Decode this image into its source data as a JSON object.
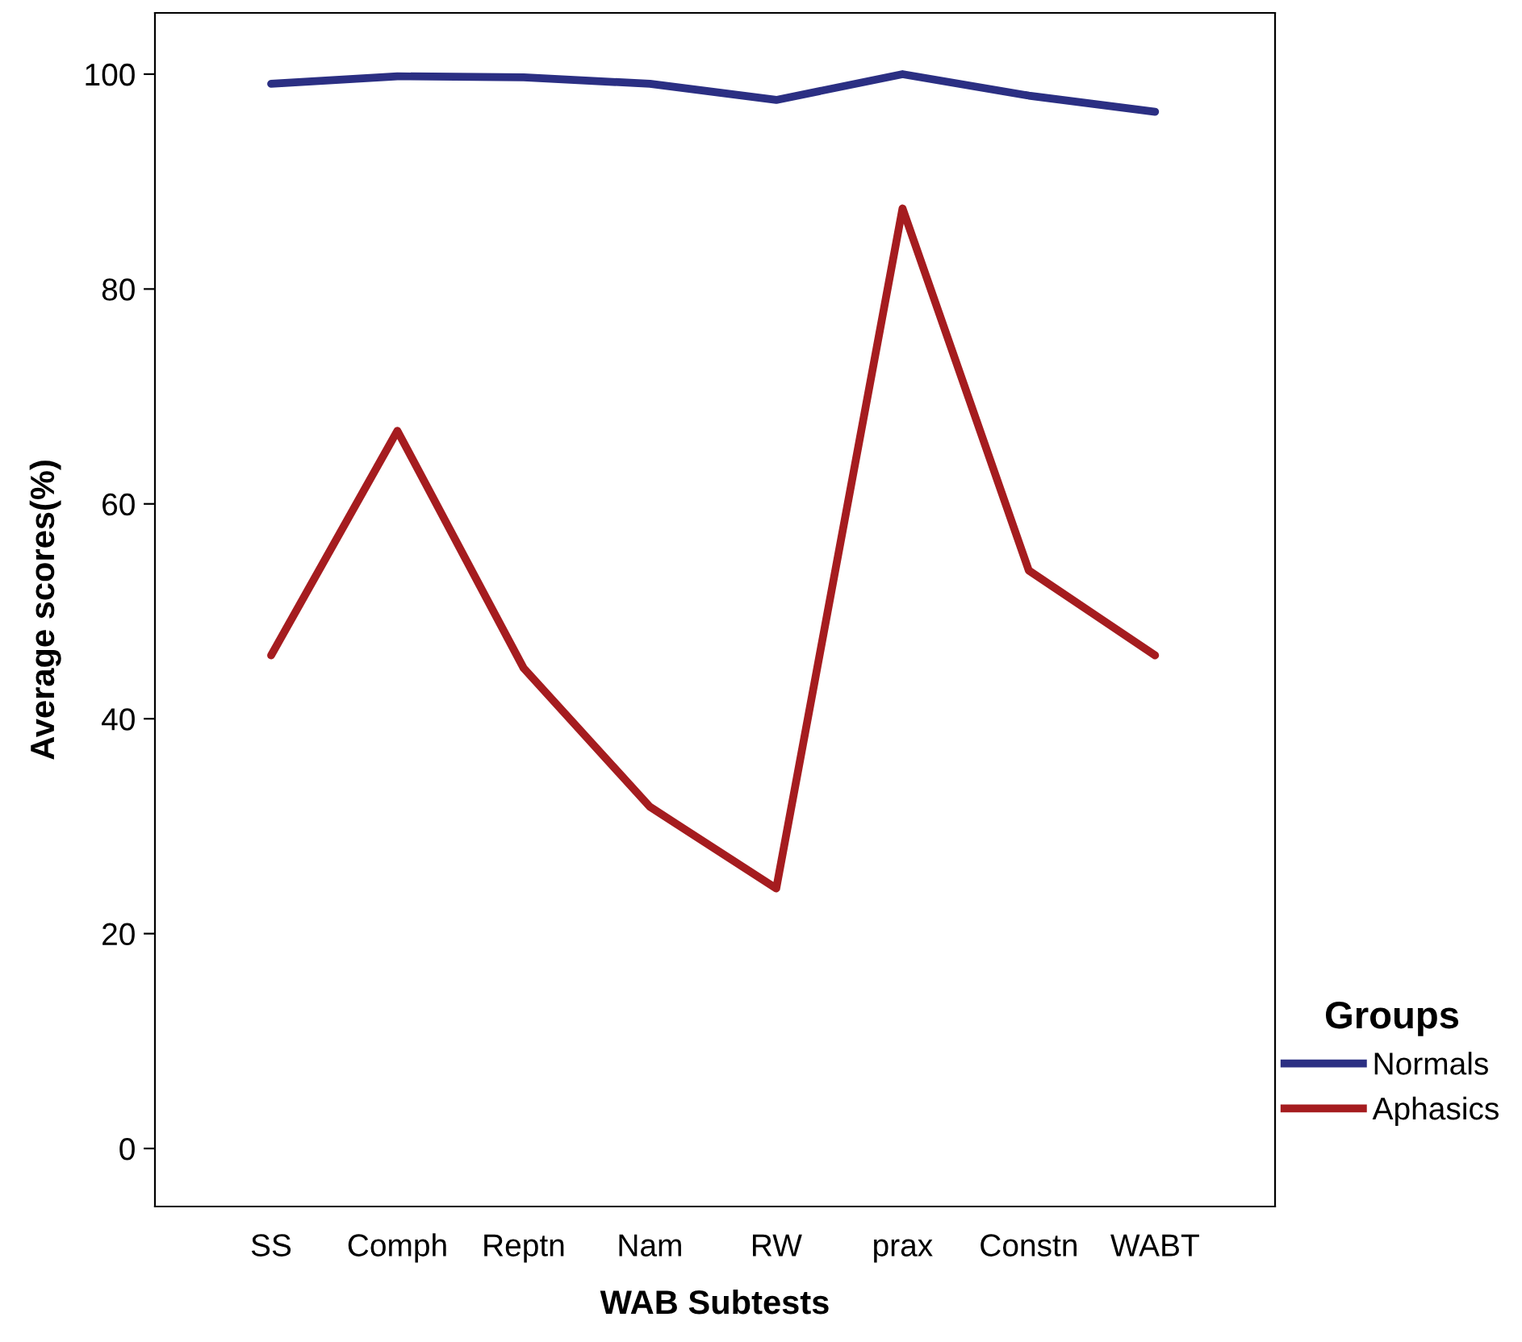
{
  "chart_data": {
    "type": "line",
    "xlabel": "WAB Subtests",
    "ylabel": "Average scores(%)",
    "legend_title": "Groups",
    "legend": "right",
    "grid": false,
    "marker": "none",
    "line_style": "solid",
    "categories": [
      "SS",
      "Comph",
      "Reptn",
      "Nam",
      "RW",
      "prax",
      "Constn",
      "WABT"
    ],
    "ylim": [
      -5.4,
      105.7
    ],
    "yticks": [
      0,
      20,
      40,
      60,
      80,
      100
    ],
    "series": [
      {
        "name": "Normals",
        "color": "#2b2f83",
        "values": [
          99.1,
          99.8,
          99.7,
          99.1,
          97.6,
          100,
          98.0,
          96.5
        ]
      },
      {
        "name": "Aphasics",
        "color": "#a51c1f",
        "values": [
          45.9,
          66.8,
          44.7,
          31.8,
          24.2,
          87.5,
          53.8,
          45.9
        ]
      }
    ]
  }
}
